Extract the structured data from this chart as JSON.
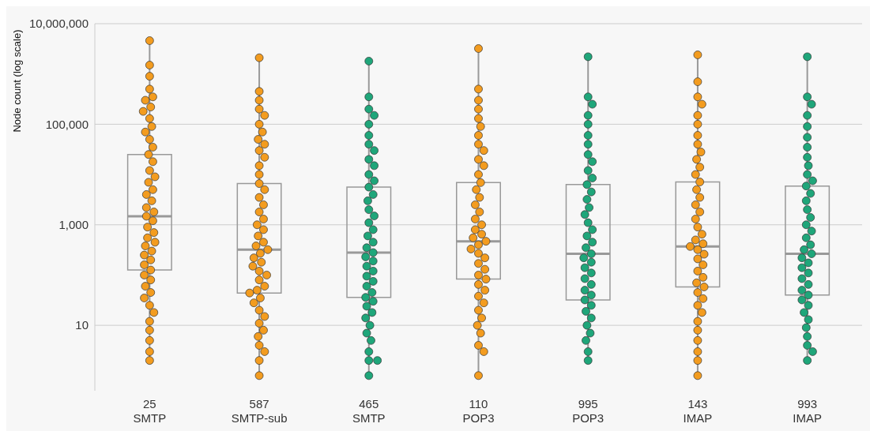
{
  "chart_data": {
    "type": "box",
    "ylabel": "Node count (log scale)",
    "log": "y",
    "grid": "y",
    "marker": "circle",
    "color": "#999999",
    "categories": [
      "25 SMTP",
      "587 SMTP-sub",
      "465 SMTP",
      "110 POP3",
      "995 POP3",
      "143 IMAP",
      "993 IMAP"
    ],
    "ylim": [
      0.5,
      10000000
    ],
    "yticks": [
      10,
      {
        "value": 1000,
        "label": "1,000"
      },
      {
        "value": 100000,
        "label": "100,000"
      },
      {
        "value": 10000000,
        "label": "10,000,000"
      }
    ],
    "boxes": [
      {
        "low": 2,
        "q1": 126,
        "median": 1480,
        "q3": 25000,
        "high": 4600000
      },
      {
        "low": 1,
        "q1": 44,
        "median": 320,
        "q3": 6600,
        "high": 2100000
      },
      {
        "low": 1,
        "q1": 36,
        "median": 280,
        "q3": 5600,
        "high": 1800000
      },
      {
        "low": 1,
        "q1": 83,
        "median": 470,
        "q3": 6900,
        "high": 3200000
      },
      {
        "low": 2,
        "q1": 32,
        "median": 265,
        "q3": 6300,
        "high": 2200000
      },
      {
        "low": 1,
        "q1": 58,
        "median": 370,
        "q3": 7100,
        "high": 2400000
      },
      {
        "low": 2,
        "q1": 40,
        "median": 265,
        "q3": 5900,
        "high": 2200000
      }
    ],
    "series": [
      {
        "type": "scatter",
        "color": "#f39c1f",
        "x": [
          "25 SMTP",
          "25 SMTP",
          "25 SMTP",
          "25 SMTP",
          "25 SMTP",
          "25 SMTP",
          "25 SMTP",
          "25 SMTP",
          "25 SMTP",
          "25 SMTP",
          "25 SMTP",
          "25 SMTP",
          "25 SMTP",
          "25 SMTP",
          "25 SMTP",
          "25 SMTP",
          "25 SMTP",
          "25 SMTP",
          "25 SMTP",
          "25 SMTP",
          "25 SMTP",
          "25 SMTP",
          "25 SMTP",
          "25 SMTP",
          "25 SMTP",
          "25 SMTP",
          "25 SMTP",
          "25 SMTP",
          "25 SMTP",
          "25 SMTP",
          "25 SMTP",
          "25 SMTP",
          "25 SMTP",
          "25 SMTP",
          "25 SMTP",
          "25 SMTP",
          "25 SMTP",
          "25 SMTP",
          "25 SMTP",
          "25 SMTP",
          "25 SMTP",
          "25 SMTP",
          "25 SMTP",
          "25 SMTP",
          "25 SMTP",
          "25 SMTP",
          "25 SMTP"
        ],
        "values": [
          4600000,
          1500000,
          900000,
          500000,
          350000,
          300000,
          220000,
          180000,
          130000,
          90000,
          70000,
          50000,
          35000,
          25000,
          18000,
          12000,
          9000,
          7000,
          5000,
          4000,
          3000,
          2200,
          1800,
          1480,
          1200,
          900,
          700,
          550,
          450,
          380,
          300,
          250,
          200,
          160,
          126,
          100,
          80,
          60,
          45,
          35,
          25,
          18,
          12,
          8,
          5,
          3,
          2
        ]
      },
      {
        "type": "scatter",
        "color": "#f39c1f",
        "x": [
          "587 SMTP-sub",
          "587 SMTP-sub",
          "587 SMTP-sub",
          "587 SMTP-sub",
          "587 SMTP-sub",
          "587 SMTP-sub",
          "587 SMTP-sub",
          "587 SMTP-sub",
          "587 SMTP-sub",
          "587 SMTP-sub",
          "587 SMTP-sub",
          "587 SMTP-sub",
          "587 SMTP-sub",
          "587 SMTP-sub",
          "587 SMTP-sub",
          "587 SMTP-sub",
          "587 SMTP-sub",
          "587 SMTP-sub",
          "587 SMTP-sub",
          "587 SMTP-sub",
          "587 SMTP-sub",
          "587 SMTP-sub",
          "587 SMTP-sub",
          "587 SMTP-sub",
          "587 SMTP-sub",
          "587 SMTP-sub",
          "587 SMTP-sub",
          "587 SMTP-sub",
          "587 SMTP-sub",
          "587 SMTP-sub",
          "587 SMTP-sub",
          "587 SMTP-sub",
          "587 SMTP-sub",
          "587 SMTP-sub",
          "587 SMTP-sub",
          "587 SMTP-sub",
          "587 SMTP-sub",
          "587 SMTP-sub",
          "587 SMTP-sub",
          "587 SMTP-sub",
          "587 SMTP-sub",
          "587 SMTP-sub",
          "587 SMTP-sub",
          "587 SMTP-sub",
          "587 SMTP-sub",
          "587 SMTP-sub"
        ],
        "values": [
          2100000,
          450000,
          300000,
          200000,
          150000,
          100000,
          70000,
          50000,
          40000,
          30000,
          22000,
          15000,
          10000,
          6600,
          5000,
          3500,
          2500,
          1800,
          1300,
          1000,
          800,
          600,
          450,
          380,
          320,
          270,
          220,
          180,
          150,
          120,
          100,
          80,
          60,
          50,
          44,
          35,
          28,
          20,
          15,
          11,
          8,
          6,
          4,
          3,
          2,
          1
        ]
      },
      {
        "type": "scatter",
        "color": "#1fa67a",
        "x": [
          "465 SMTP",
          "465 SMTP",
          "465 SMTP",
          "465 SMTP",
          "465 SMTP",
          "465 SMTP",
          "465 SMTP",
          "465 SMTP",
          "465 SMTP",
          "465 SMTP",
          "465 SMTP",
          "465 SMTP",
          "465 SMTP",
          "465 SMTP",
          "465 SMTP",
          "465 SMTP",
          "465 SMTP",
          "465 SMTP",
          "465 SMTP",
          "465 SMTP",
          "465 SMTP",
          "465 SMTP",
          "465 SMTP",
          "465 SMTP",
          "465 SMTP",
          "465 SMTP",
          "465 SMTP",
          "465 SMTP",
          "465 SMTP",
          "465 SMTP",
          "465 SMTP",
          "465 SMTP",
          "465 SMTP",
          "465 SMTP",
          "465 SMTP",
          "465 SMTP",
          "465 SMTP",
          "465 SMTP",
          "465 SMTP",
          "465 SMTP",
          "465 SMTP",
          "465 SMTP",
          "465 SMTP"
        ],
        "values": [
          1800000,
          350000,
          200000,
          150000,
          100000,
          60000,
          40000,
          30000,
          20000,
          15000,
          10000,
          7500,
          5600,
          4000,
          3000,
          2000,
          1500,
          1100,
          800,
          600,
          450,
          350,
          280,
          230,
          190,
          150,
          120,
          95,
          75,
          60,
          45,
          36,
          30,
          24,
          18,
          14,
          10,
          7,
          5,
          3,
          2,
          2,
          1
        ]
      },
      {
        "type": "scatter",
        "color": "#f39c1f",
        "x": [
          "110 POP3",
          "110 POP3",
          "110 POP3",
          "110 POP3",
          "110 POP3",
          "110 POP3",
          "110 POP3",
          "110 POP3",
          "110 POP3",
          "110 POP3",
          "110 POP3",
          "110 POP3",
          "110 POP3",
          "110 POP3",
          "110 POP3",
          "110 POP3",
          "110 POP3",
          "110 POP3",
          "110 POP3",
          "110 POP3",
          "110 POP3",
          "110 POP3",
          "110 POP3",
          "110 POP3",
          "110 POP3",
          "110 POP3",
          "110 POP3",
          "110 POP3",
          "110 POP3",
          "110 POP3",
          "110 POP3",
          "110 POP3",
          "110 POP3",
          "110 POP3",
          "110 POP3",
          "110 POP3",
          "110 POP3",
          "110 POP3",
          "110 POP3",
          "110 POP3",
          "110 POP3",
          "110 POP3"
        ],
        "values": [
          3200000,
          500000,
          300000,
          200000,
          130000,
          90000,
          60000,
          40000,
          30000,
          20000,
          15000,
          10000,
          6900,
          5000,
          3500,
          2500,
          1800,
          1300,
          1000,
          800,
          650,
          550,
          470,
          400,
          330,
          270,
          220,
          170,
          130,
          100,
          83,
          65,
          50,
          38,
          28,
          20,
          14,
          10,
          7,
          4,
          3,
          1
        ]
      },
      {
        "type": "scatter",
        "color": "#1fa67a",
        "x": [
          "995 POP3",
          "995 POP3",
          "995 POP3",
          "995 POP3",
          "995 POP3",
          "995 POP3",
          "995 POP3",
          "995 POP3",
          "995 POP3",
          "995 POP3",
          "995 POP3",
          "995 POP3",
          "995 POP3",
          "995 POP3",
          "995 POP3",
          "995 POP3",
          "995 POP3",
          "995 POP3",
          "995 POP3",
          "995 POP3",
          "995 POP3",
          "995 POP3",
          "995 POP3",
          "995 POP3",
          "995 POP3",
          "995 POP3",
          "995 POP3",
          "995 POP3",
          "995 POP3",
          "995 POP3",
          "995 POP3",
          "995 POP3",
          "995 POP3",
          "995 POP3",
          "995 POP3",
          "995 POP3",
          "995 POP3",
          "995 POP3",
          "995 POP3"
        ],
        "values": [
          2200000,
          350000,
          250000,
          150000,
          100000,
          60000,
          40000,
          25000,
          18000,
          12000,
          8500,
          6300,
          4500,
          3200,
          2200,
          1600,
          1100,
          800,
          600,
          450,
          350,
          265,
          220,
          180,
          140,
          110,
          85,
          65,
          50,
          40,
          32,
          25,
          19,
          14,
          10,
          7,
          5,
          3,
          2
        ]
      },
      {
        "type": "scatter",
        "color": "#f39c1f",
        "x": [
          "143 IMAP",
          "143 IMAP",
          "143 IMAP",
          "143 IMAP",
          "143 IMAP",
          "143 IMAP",
          "143 IMAP",
          "143 IMAP",
          "143 IMAP",
          "143 IMAP",
          "143 IMAP",
          "143 IMAP",
          "143 IMAP",
          "143 IMAP",
          "143 IMAP",
          "143 IMAP",
          "143 IMAP",
          "143 IMAP",
          "143 IMAP",
          "143 IMAP",
          "143 IMAP",
          "143 IMAP",
          "143 IMAP",
          "143 IMAP",
          "143 IMAP",
          "143 IMAP",
          "143 IMAP",
          "143 IMAP",
          "143 IMAP",
          "143 IMAP",
          "143 IMAP",
          "143 IMAP",
          "143 IMAP",
          "143 IMAP",
          "143 IMAP",
          "143 IMAP",
          "143 IMAP",
          "143 IMAP",
          "143 IMAP",
          "143 IMAP",
          "143 IMAP"
        ],
        "values": [
          2400000,
          700000,
          350000,
          250000,
          150000,
          100000,
          60000,
          40000,
          28000,
          20000,
          14000,
          10000,
          7100,
          5000,
          3500,
          2500,
          1800,
          1300,
          900,
          650,
          500,
          420,
          370,
          320,
          260,
          210,
          160,
          120,
          90,
          70,
          58,
          45,
          34,
          25,
          18,
          12,
          8,
          5,
          3,
          2,
          1
        ]
      },
      {
        "type": "scatter",
        "color": "#1fa67a",
        "x": [
          "993 IMAP",
          "993 IMAP",
          "993 IMAP",
          "993 IMAP",
          "993 IMAP",
          "993 IMAP",
          "993 IMAP",
          "993 IMAP",
          "993 IMAP",
          "993 IMAP",
          "993 IMAP",
          "993 IMAP",
          "993 IMAP",
          "993 IMAP",
          "993 IMAP",
          "993 IMAP",
          "993 IMAP",
          "993 IMAP",
          "993 IMAP",
          "993 IMAP",
          "993 IMAP",
          "993 IMAP",
          "993 IMAP",
          "993 IMAP",
          "993 IMAP",
          "993 IMAP",
          "993 IMAP",
          "993 IMAP",
          "993 IMAP",
          "993 IMAP",
          "993 IMAP",
          "993 IMAP",
          "993 IMAP",
          "993 IMAP",
          "993 IMAP",
          "993 IMAP",
          "993 IMAP",
          "993 IMAP",
          "993 IMAP"
        ],
        "values": [
          2200000,
          350000,
          250000,
          150000,
          90000,
          55000,
          35000,
          22000,
          15000,
          10000,
          7500,
          5900,
          4200,
          3000,
          2000,
          1400,
          1000,
          750,
          550,
          400,
          320,
          265,
          220,
          175,
          140,
          110,
          85,
          65,
          50,
          40,
          32,
          25,
          18,
          13,
          9,
          6,
          4,
          3,
          2
        ]
      }
    ]
  }
}
